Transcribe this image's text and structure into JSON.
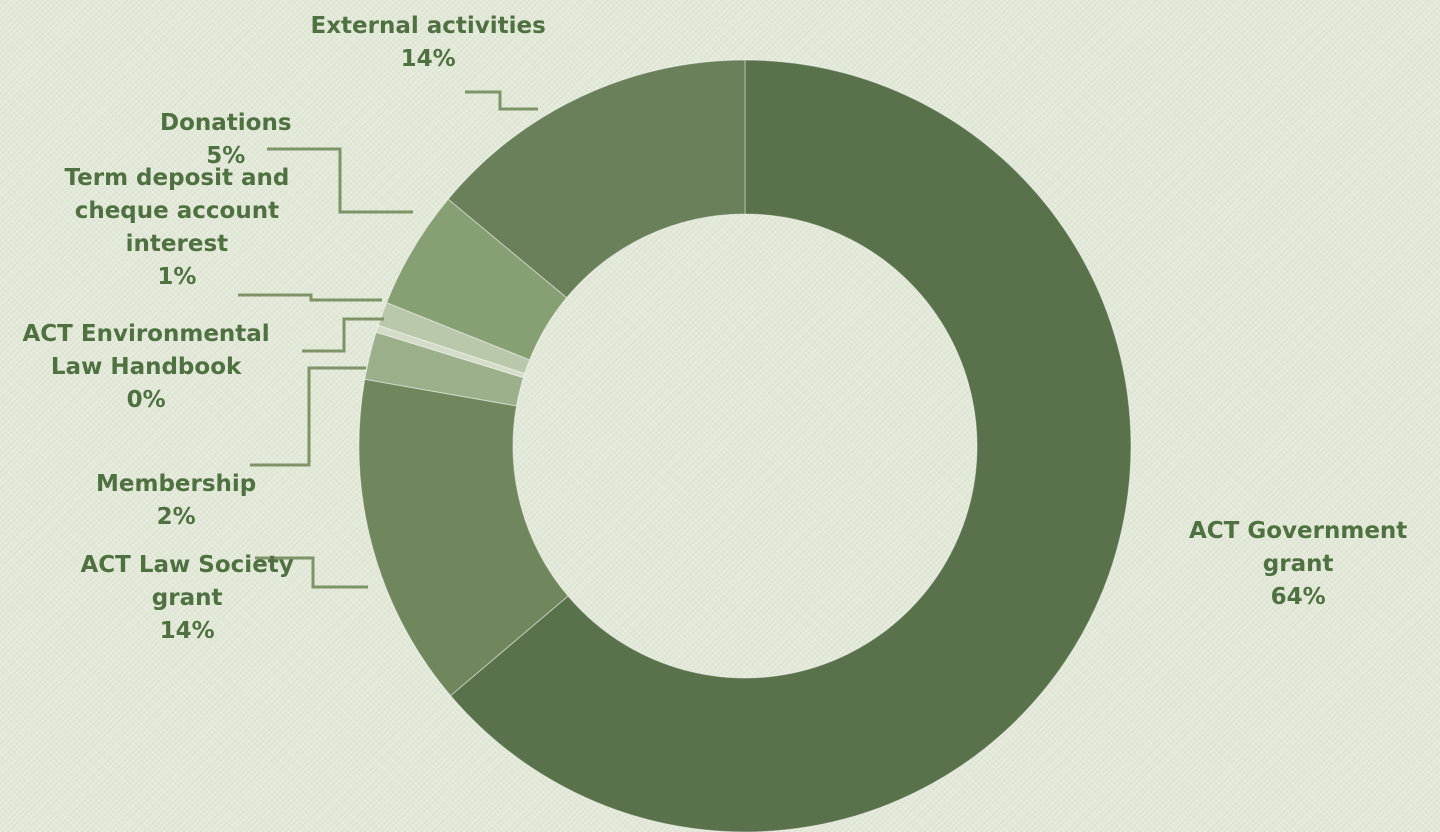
{
  "chart_data": {
    "type": "pie",
    "variant": "doughnut",
    "title": "",
    "start_angle_deg": 0,
    "direction": "clockwise",
    "slices": [
      {
        "name": "ACT Government grant",
        "name_lines": [
          "ACT Government",
          "grant"
        ],
        "value": 64,
        "value_label": "64%",
        "color": "#5a724b"
      },
      {
        "name": "ACT Law Society grant",
        "name_lines": [
          "ACT Law Society",
          "grant"
        ],
        "value": 14,
        "value_label": "14%",
        "color": "#70875e"
      },
      {
        "name": "Membership",
        "name_lines": [
          "Membership"
        ],
        "value": 2,
        "value_label": "2%",
        "color": "#9bb08a"
      },
      {
        "name": "ACT Environmental Law Handbook",
        "name_lines": [
          "ACT Environmental",
          "Law Handbook"
        ],
        "value": 0.3,
        "value_label": "0%",
        "color": "#d4dcc9"
      },
      {
        "name": "Term deposit and cheque account interest",
        "name_lines": [
          "Term deposit and",
          "cheque account",
          "interest"
        ],
        "value": 1,
        "value_label": "1%",
        "color": "#b9c8aa"
      },
      {
        "name": "Donations",
        "name_lines": [
          "Donations"
        ],
        "value": 5,
        "value_label": "5%",
        "color": "#87a073"
      },
      {
        "name": "External activities",
        "name_lines": [
          "External activities"
        ],
        "value": 14,
        "value_label": "14%",
        "color": "#69805a"
      }
    ],
    "legend": "none",
    "label_color": "#4f7040",
    "leader_line_color": "#7e9368"
  }
}
